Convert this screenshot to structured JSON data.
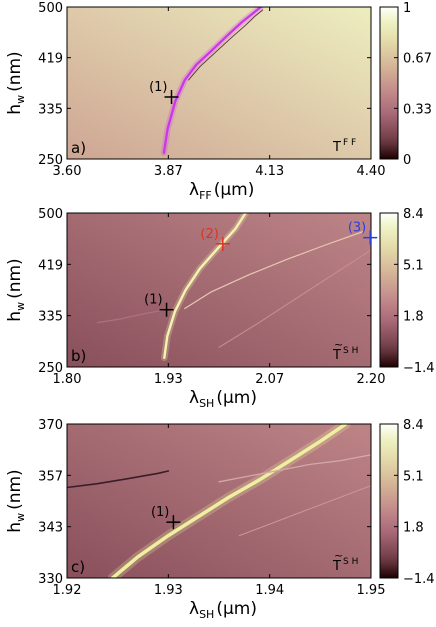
{
  "chart_data": [
    {
      "type": "heatmap",
      "panel_label": "a)",
      "quantity": {
        "base": "T",
        "superscript": "F F",
        "tilde": false
      },
      "xlabel": {
        "symbol": "λ",
        "sub": "FF",
        "unit": "(µm)"
      },
      "ylabel": {
        "symbol": "h",
        "sub": "w",
        "unit": "(nm)"
      },
      "xlim": [
        3.6,
        4.4
      ],
      "ylim": [
        250,
        500
      ],
      "xticks": [
        "3.60",
        "3.87",
        "4.13",
        "4.40"
      ],
      "yticks": [
        "250",
        "335",
        "419",
        "500"
      ],
      "colorbar": {
        "min": 0,
        "max": 1,
        "ticks": [
          "0",
          "0.33",
          "0.67",
          "1"
        ],
        "colormap": "pink"
      },
      "background_gradient": {
        "low_corner_value": 0.55,
        "high_corner_value": 0.88
      },
      "curves": [
        {
          "color": "#cc33ee",
          "width": 2.2,
          "x": [
            3.855,
            3.865,
            3.885,
            3.91,
            3.94,
            3.98,
            4.02,
            4.06,
            4.09,
            4.11
          ],
          "y": [
            260,
            300,
            345,
            380,
            405,
            428,
            452,
            475,
            490,
            500
          ]
        },
        {
          "color": "#5a2f3a",
          "width": 0.9,
          "x": [
            3.92,
            3.95,
            3.99,
            4.03,
            4.07,
            4.095,
            4.115
          ],
          "y": [
            380,
            402,
            425,
            448,
            470,
            485,
            495
          ]
        }
      ],
      "markers": [
        {
          "label": "(1)",
          "x": 3.875,
          "y": 352,
          "color": "#000000",
          "label_color": "#000000",
          "label_side": "left"
        }
      ]
    },
    {
      "type": "heatmap",
      "panel_label": "b)",
      "quantity": {
        "base": "T",
        "superscript": "S H",
        "tilde": true
      },
      "xlabel": {
        "symbol": "λ",
        "sub": "SH",
        "unit": "(µm)"
      },
      "ylabel": {
        "symbol": "h",
        "sub": "w",
        "unit": "(nm)"
      },
      "xlim": [
        1.8,
        2.2
      ],
      "ylim": [
        250,
        500
      ],
      "xticks": [
        "1.80",
        "1.93",
        "2.07",
        "2.20"
      ],
      "yticks": [
        "250",
        "335",
        "419",
        "500"
      ],
      "colorbar": {
        "min": -1.4,
        "max": 8.4,
        "ticks": [
          "−1.4",
          "1.8",
          "5.1",
          "8.4"
        ],
        "colormap": "pink"
      },
      "background_gradient": {
        "low_corner_value": 0.2,
        "high_corner_value": 0.42
      },
      "curves": [
        {
          "color": "#f4f4b0",
          "width": 2.4,
          "x": [
            1.928,
            1.932,
            1.942,
            1.956,
            1.975,
            1.998,
            2.022,
            2.035
          ],
          "y": [
            265,
            300,
            340,
            375,
            410,
            442,
            475,
            500
          ]
        },
        {
          "color": "#e8c8b0",
          "width": 1.2,
          "x": [
            1.955,
            1.99,
            2.04,
            2.09,
            2.14,
            2.19
          ],
          "y": [
            345,
            372,
            400,
            425,
            448,
            470
          ]
        },
        {
          "color": "#c89090",
          "width": 1.0,
          "x": [
            2.0,
            2.05,
            2.1,
            2.15,
            2.2
          ],
          "y": [
            282,
            320,
            360,
            400,
            440
          ]
        },
        {
          "color": "#b07080",
          "width": 1.2,
          "x": [
            1.84,
            1.87,
            1.9,
            1.93
          ],
          "y": [
            322,
            328,
            336,
            343
          ]
        }
      ],
      "markers": [
        {
          "label": "(1)",
          "x": 1.931,
          "y": 343,
          "color": "#000000",
          "label_color": "#000000",
          "label_side": "left"
        },
        {
          "label": "(2)",
          "x": 2.005,
          "y": 450,
          "color": "#e0301e",
          "label_color": "#e0301e",
          "label_side": "left"
        },
        {
          "label": "(3)",
          "x": 2.199,
          "y": 460,
          "color": "#2a3fd8",
          "label_color": "#2a3fd8",
          "label_side": "left"
        }
      ]
    },
    {
      "type": "heatmap",
      "panel_label": "c)",
      "quantity": {
        "base": "T",
        "superscript": "S H",
        "tilde": true
      },
      "xlabel": {
        "symbol": "λ",
        "sub": "SH",
        "unit": "(µm)"
      },
      "ylabel": {
        "symbol": "h",
        "sub": "w",
        "unit": "(nm)"
      },
      "xlim": [
        1.92,
        1.95
      ],
      "ylim": [
        330,
        370
      ],
      "xticks": [
        "1.92",
        "1.93",
        "1.94",
        "1.95"
      ],
      "yticks": [
        "330",
        "343",
        "357",
        "370"
      ],
      "colorbar": {
        "min": -1.4,
        "max": 8.4,
        "ticks": [
          "−1.4",
          "1.8",
          "5.1",
          "8.4"
        ],
        "colormap": "pink"
      },
      "background_gradient": {
        "low_corner_value": 0.2,
        "high_corner_value": 0.42
      },
      "curves": [
        {
          "color": "#eef0a0",
          "width": 3.5,
          "x": [
            1.9245,
            1.927,
            1.93,
            1.933,
            1.936,
            1.939,
            1.942,
            1.945,
            1.9475
          ],
          "y": [
            330,
            335.5,
            341,
            346,
            351,
            355.5,
            360.5,
            365.5,
            370
          ]
        },
        {
          "color": "#d4a8a8",
          "width": 1.3,
          "x": [
            1.935,
            1.938,
            1.941,
            1.944,
            1.947,
            1.95
          ],
          "y": [
            355,
            356.5,
            358,
            359.5,
            360.5,
            362
          ]
        },
        {
          "color": "#c89898",
          "width": 1.0,
          "x": [
            1.937,
            1.94,
            1.943,
            1.946,
            1.95
          ],
          "y": [
            341,
            344,
            347,
            350,
            354
          ]
        },
        {
          "color": "#3a1d28",
          "width": 1.6,
          "x": [
            1.92,
            1.923,
            1.926,
            1.929,
            1.93
          ],
          "y": [
            353.5,
            354.5,
            355.8,
            357.2,
            357.8
          ]
        }
      ],
      "markers": [
        {
          "label": "(1)",
          "x": 1.9305,
          "y": 344.5,
          "color": "#000000",
          "label_color": "#000000",
          "label_side": "left"
        }
      ]
    }
  ]
}
